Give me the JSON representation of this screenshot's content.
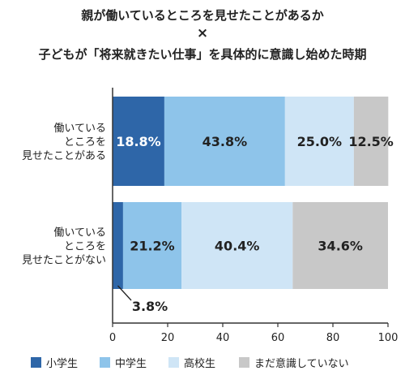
{
  "chart_data": {
    "type": "bar",
    "orientation": "horizontal",
    "stacked": true,
    "title_lines": [
      "親が働いているところを見せたことがあるか",
      "×",
      "子どもが「将来就きたい仕事」を具体的に意識し始めた時期"
    ],
    "categories": [
      [
        "働いている",
        "ところを",
        "見せたことがある"
      ],
      [
        "働いている",
        "ところを",
        "見せたことがない"
      ]
    ],
    "series": [
      {
        "name": "小学生",
        "values": [
          18.8,
          3.8
        ],
        "color": "#2e66a8"
      },
      {
        "name": "中学生",
        "values": [
          43.8,
          21.2
        ],
        "color": "#8ec4ea"
      },
      {
        "name": "高校生",
        "values": [
          25.0,
          40.4
        ],
        "color": "#cfe5f6"
      },
      {
        "name": "まだ意識していない",
        "values": [
          12.5,
          34.6
        ],
        "color": "#c8c8c8"
      }
    ],
    "data_labels": [
      [
        "18.8%",
        "43.8%",
        "25.0%",
        "12.5%"
      ],
      [
        "3.8%",
        "21.2%",
        "40.4%",
        "34.6%"
      ]
    ],
    "xlim": [
      0,
      100
    ],
    "xticks": [
      "0",
      "20",
      "40",
      "60",
      "80",
      "100"
    ],
    "legend_position": "bottom",
    "grid": false
  }
}
